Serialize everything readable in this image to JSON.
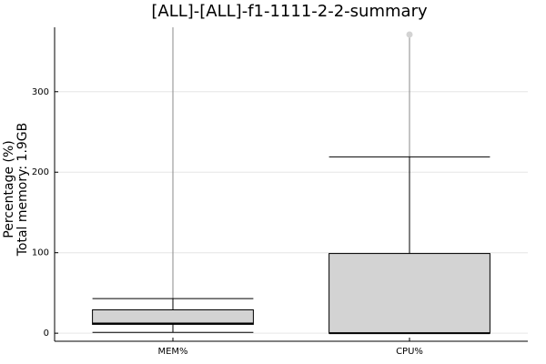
{
  "chart_data": {
    "type": "box",
    "title": "[ALL]-[ALL]-f1-1111-2-2-summary",
    "ylabel_lines": [
      "Percentage (%)",
      "Total memory: 1.9GB"
    ],
    "yticks": [
      0,
      100,
      200,
      300
    ],
    "ylim": [
      -10,
      380
    ],
    "grid": true,
    "series": [
      {
        "category": "MEM%",
        "whisker_low": 1,
        "q1": 11,
        "median": 12,
        "q3": 29,
        "whisker_high": 43,
        "max": 380,
        "outliers": []
      },
      {
        "category": "CPU%",
        "whisker_low": 0,
        "q1": 0,
        "median": 0,
        "q3": 99,
        "whisker_high": 219,
        "max": 371,
        "outliers": [
          371
        ]
      }
    ]
  }
}
